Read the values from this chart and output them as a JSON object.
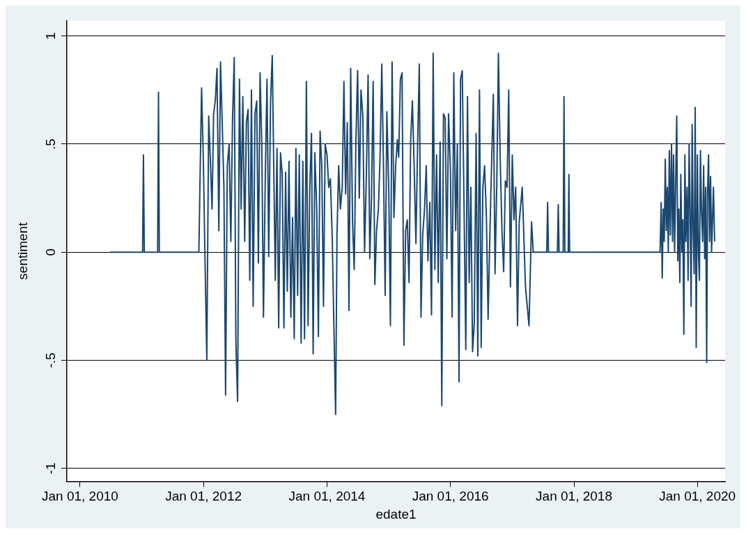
{
  "chart_data": {
    "type": "line",
    "xlabel": "edate1",
    "ylabel": "sentiment",
    "xlim": [
      "2009-10-15",
      "2020-06-13"
    ],
    "ylim": [
      -1.06,
      1.07
    ],
    "xticks": [
      {
        "value": "2010-01-01",
        "label": "Jan 01, 2010"
      },
      {
        "value": "2012-01-01",
        "label": "Jan 01, 2012"
      },
      {
        "value": "2014-01-01",
        "label": "Jan 01, 2014"
      },
      {
        "value": "2016-01-01",
        "label": "Jan 01, 2016"
      },
      {
        "value": "2018-01-01",
        "label": "Jan 01, 2018"
      },
      {
        "value": "2020-01-01",
        "label": "Jan 01, 2020"
      }
    ],
    "yticks": [
      {
        "value": -1,
        "label": "-1"
      },
      {
        "value": -0.5,
        "label": "-.5"
      },
      0,
      {
        "value": 0.5,
        "label": ".5"
      },
      1
    ],
    "grid": "y",
    "legend": false,
    "marker": "none",
    "line_style": "solid",
    "series": [
      {
        "color": "#1a476f",
        "x": [
          "2010-06-27",
          "2011-01-06",
          "2011-01-11",
          "2011-01-16",
          "2011-04-05",
          "2011-04-10",
          "2011-04-15",
          "2011-12-05",
          "2011-12-11",
          "2011-12-21",
          "2012-01-01",
          "2012-01-11",
          "2012-01-21",
          "2012-02-01",
          "2012-02-11",
          "2012-02-21",
          "2012-03-01",
          "2012-03-11",
          "2012-03-21",
          "2012-04-01",
          "2012-04-11",
          "2012-04-21",
          "2012-05-01",
          "2012-05-11",
          "2012-05-21",
          "2012-06-01",
          "2012-06-11",
          "2012-06-21",
          "2012-07-01",
          "2012-07-11",
          "2012-07-21",
          "2012-08-01",
          "2012-08-11",
          "2012-08-21",
          "2012-09-01",
          "2012-09-11",
          "2012-09-21",
          "2012-10-01",
          "2012-10-11",
          "2012-10-21",
          "2012-11-01",
          "2012-11-11",
          "2012-11-21",
          "2012-12-01",
          "2012-12-11",
          "2012-12-21",
          "2013-01-01",
          "2013-01-11",
          "2013-01-21",
          "2013-02-01",
          "2013-02-11",
          "2013-02-21",
          "2013-03-01",
          "2013-03-11",
          "2013-03-21",
          "2013-04-01",
          "2013-04-11",
          "2013-04-21",
          "2013-05-01",
          "2013-05-11",
          "2013-05-21",
          "2013-06-01",
          "2013-06-11",
          "2013-06-21",
          "2013-07-01",
          "2013-07-11",
          "2013-07-21",
          "2013-08-01",
          "2013-08-11",
          "2013-08-21",
          "2013-09-01",
          "2013-09-11",
          "2013-09-21",
          "2013-10-01",
          "2013-10-11",
          "2013-10-21",
          "2013-11-01",
          "2013-11-11",
          "2013-11-21",
          "2013-12-01",
          "2013-12-11",
          "2013-12-21",
          "2014-01-01",
          "2014-01-11",
          "2014-01-21",
          "2014-02-01",
          "2014-02-11",
          "2014-02-21",
          "2014-03-01",
          "2014-03-11",
          "2014-03-21",
          "2014-04-01",
          "2014-04-11",
          "2014-04-21",
          "2014-05-01",
          "2014-05-11",
          "2014-05-21",
          "2014-06-01",
          "2014-06-11",
          "2014-06-21",
          "2014-07-01",
          "2014-07-11",
          "2014-07-21",
          "2014-08-01",
          "2014-08-11",
          "2014-08-21",
          "2014-09-01",
          "2014-09-11",
          "2014-09-21",
          "2014-10-01",
          "2014-10-11",
          "2014-10-21",
          "2014-11-01",
          "2014-11-11",
          "2014-11-21",
          "2014-12-01",
          "2014-12-11",
          "2014-12-21",
          "2015-01-01",
          "2015-01-11",
          "2015-01-21",
          "2015-02-01",
          "2015-02-11",
          "2015-02-21",
          "2015-03-01",
          "2015-03-11",
          "2015-03-21",
          "2015-04-01",
          "2015-04-11",
          "2015-04-21",
          "2015-05-01",
          "2015-05-11",
          "2015-05-21",
          "2015-06-01",
          "2015-06-11",
          "2015-06-21",
          "2015-07-01",
          "2015-07-11",
          "2015-07-21",
          "2015-08-01",
          "2015-08-11",
          "2015-08-21",
          "2015-09-01",
          "2015-09-11",
          "2015-09-21",
          "2015-10-01",
          "2015-10-11",
          "2015-10-21",
          "2015-11-01",
          "2015-11-11",
          "2015-11-21",
          "2015-12-01",
          "2015-12-11",
          "2015-12-21",
          "2016-01-01",
          "2016-01-11",
          "2016-01-21",
          "2016-02-01",
          "2016-02-11",
          "2016-02-21",
          "2016-03-01",
          "2016-03-11",
          "2016-03-21",
          "2016-04-01",
          "2016-04-11",
          "2016-04-21",
          "2016-05-01",
          "2016-05-11",
          "2016-05-21",
          "2016-06-01",
          "2016-06-11",
          "2016-06-21",
          "2016-07-01",
          "2016-07-11",
          "2016-07-21",
          "2016-08-01",
          "2016-08-11",
          "2016-08-21",
          "2016-09-01",
          "2016-09-11",
          "2016-09-21",
          "2016-10-01",
          "2016-10-11",
          "2016-10-21",
          "2016-11-01",
          "2016-11-11",
          "2016-11-21",
          "2016-12-01",
          "2016-12-11",
          "2016-12-21",
          "2017-01-01",
          "2017-01-11",
          "2017-01-21",
          "2017-02-01",
          "2017-02-11",
          "2017-03-01",
          "2017-03-20",
          "2017-04-10",
          "2017-04-25",
          "2017-05-05",
          "2017-07-24",
          "2017-07-29",
          "2017-08-03",
          "2017-09-25",
          "2017-09-30",
          "2017-10-05",
          "2017-10-29",
          "2017-11-03",
          "2017-11-08",
          "2017-11-28",
          "2017-12-02",
          "2017-12-06",
          "2019-05-25",
          "2019-06-01",
          "2019-06-07",
          "2019-06-13",
          "2019-06-19",
          "2019-06-25",
          "2019-07-01",
          "2019-07-07",
          "2019-07-13",
          "2019-07-19",
          "2019-07-25",
          "2019-08-01",
          "2019-08-07",
          "2019-08-13",
          "2019-08-19",
          "2019-08-25",
          "2019-09-01",
          "2019-09-07",
          "2019-09-13",
          "2019-09-19",
          "2019-09-25",
          "2019-10-01",
          "2019-10-07",
          "2019-10-13",
          "2019-10-19",
          "2019-10-25",
          "2019-11-01",
          "2019-11-07",
          "2019-11-13",
          "2019-11-19",
          "2019-11-25",
          "2019-12-01",
          "2019-12-07",
          "2019-12-13",
          "2019-12-19",
          "2019-12-25",
          "2020-01-01",
          "2020-01-07",
          "2020-01-13",
          "2020-01-19",
          "2020-01-25",
          "2020-02-01",
          "2020-02-07",
          "2020-02-13",
          "2020-02-19",
          "2020-02-25",
          "2020-03-01",
          "2020-03-07",
          "2020-03-13",
          "2020-03-19",
          "2020-03-25",
          "2020-04-05",
          "2020-04-12"
        ],
        "values": [
          0,
          0,
          0.45,
          0,
          0,
          0.74,
          0,
          0,
          0.3,
          0.76,
          0.4,
          -0.07,
          -0.5,
          0.63,
          0.42,
          0.2,
          0.64,
          0.7,
          0.85,
          0.1,
          0.88,
          0.6,
          0.3,
          -0.66,
          0.4,
          0.5,
          0.05,
          0.61,
          0.9,
          -0.42,
          -0.69,
          0.8,
          0.2,
          0.72,
          0.05,
          0.6,
          0.66,
          -0.13,
          0.75,
          -0.25,
          0.64,
          0.7,
          -0.05,
          0.83,
          0.5,
          -0.3,
          0.36,
          0.8,
          -0.02,
          0.7,
          0.91,
          0.33,
          -0.13,
          0.48,
          -0.35,
          0.46,
          0.36,
          -0.35,
          0.37,
          -0.18,
          0.42,
          -0.3,
          0.16,
          -0.4,
          0.48,
          -0.2,
          0.45,
          -0.42,
          0.42,
          -0.4,
          0.79,
          -0.34,
          0.3,
          0.55,
          -0.47,
          0.46,
          0.2,
          -0.39,
          0.56,
          0.4,
          -0.25,
          0.5,
          0.45,
          0.3,
          0.34,
          0.06,
          -0.36,
          -0.75,
          0.08,
          0.4,
          0.2,
          0.3,
          0.79,
          0.27,
          0.6,
          -0.27,
          0.85,
          0.14,
          -0.08,
          0.52,
          0.84,
          0.25,
          0.75,
          0.63,
          0.0,
          0.33,
          0.82,
          -0.03,
          0.25,
          0.79,
          -0.15,
          0.1,
          0.2,
          0.45,
          0.87,
          0.4,
          -0.2,
          0.65,
          0.3,
          -0.34,
          0.88,
          0.16,
          0.4,
          0.52,
          0.44,
          0.8,
          0.83,
          -0.43,
          0.1,
          0.15,
          -0.14,
          0.52,
          0.7,
          0.38,
          0.04,
          0.5,
          0.87,
          -0.3,
          0.08,
          0.2,
          0.4,
          -0.04,
          0.23,
          -0.29,
          0.92,
          -0.08,
          0.45,
          -0.14,
          0.51,
          -0.71,
          0.64,
          0.62,
          -0.03,
          0.64,
          0.38,
          -0.3,
          0.83,
          0.1,
          0.5,
          -0.6,
          0.8,
          0.84,
          0.25,
          -0.45,
          0.72,
          -0.14,
          0.3,
          -0.46,
          -0.33,
          0.55,
          -0.48,
          0.75,
          -0.44,
          0.3,
          0.4,
          0.16,
          -0.31,
          0.07,
          0.42,
          0.73,
          -0.1,
          0.3,
          0.92,
          0.45,
          0.1,
          -0.09,
          0.33,
          0.3,
          0.75,
          -0.16,
          0.45,
          0.15,
          0.3,
          -0.34,
          0.14,
          0.3,
          -0.16,
          -0.34,
          0.14,
          0,
          0,
          0.23,
          0,
          0,
          0.22,
          0,
          0,
          0.72,
          0,
          0,
          0.36,
          0,
          0,
          0.23,
          -0.12,
          0.2,
          0.05,
          0.43,
          0.1,
          0.3,
          0.0,
          0.47,
          0.08,
          0.5,
          0.05,
          0.45,
          0.0,
          0.3,
          0.63,
          -0.04,
          0.2,
          -0.14,
          0.36,
          0.0,
          0.15,
          -0.38,
          0.45,
          0.05,
          0.3,
          -0.13,
          0.5,
          0.2,
          -0.25,
          0.59,
          0.1,
          -0.1,
          0.67,
          -0.44,
          0.45,
          0.0,
          -0.13,
          0.47,
          0.2,
          0.05,
          0.4,
          -0.03,
          0.3,
          -0.51,
          0.27,
          0.45,
          0.05,
          0.35,
          0.0,
          0.3,
          0.05
        ]
      }
    ]
  }
}
